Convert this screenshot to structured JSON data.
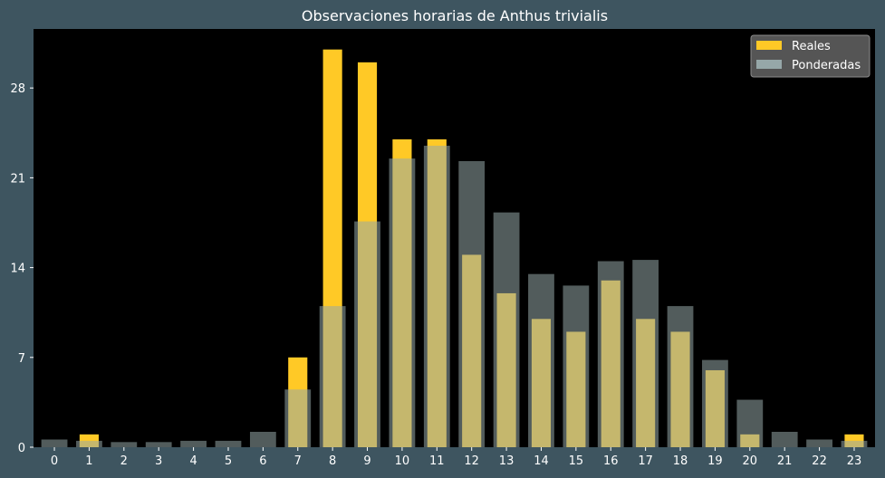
{
  "chart_data": {
    "type": "bar",
    "title": "Observaciones horarias de Anthus trivialis",
    "xlabel": "",
    "ylabel": "",
    "categories": [
      "0",
      "1",
      "2",
      "3",
      "4",
      "5",
      "6",
      "7",
      "8",
      "9",
      "10",
      "11",
      "12",
      "13",
      "14",
      "15",
      "16",
      "17",
      "18",
      "19",
      "20",
      "21",
      "22",
      "23"
    ],
    "series": [
      {
        "name": "Reales",
        "color": "#ffc926",
        "values": [
          0,
          1,
          0,
          0,
          0,
          0,
          0,
          7,
          31,
          30,
          24,
          24,
          15,
          12,
          10,
          9,
          13,
          10,
          9,
          6,
          1,
          0,
          0,
          1
        ]
      },
      {
        "name": "Ponderadas",
        "color": "#96a7a8",
        "values": [
          0.6,
          0.5,
          0.4,
          0.4,
          0.5,
          0.5,
          1.2,
          4.5,
          11,
          17.6,
          22.5,
          23.5,
          22.3,
          18.3,
          13.5,
          12.6,
          14.5,
          14.6,
          11,
          6.8,
          3.7,
          1.2,
          0.6,
          0.5
        ]
      }
    ],
    "ylim": [
      0,
      32.6
    ],
    "yticks": [
      0,
      7,
      14,
      21,
      28
    ],
    "legend": "top-right",
    "grid": false,
    "background": "#000000",
    "figure_background": "#3e5560"
  }
}
